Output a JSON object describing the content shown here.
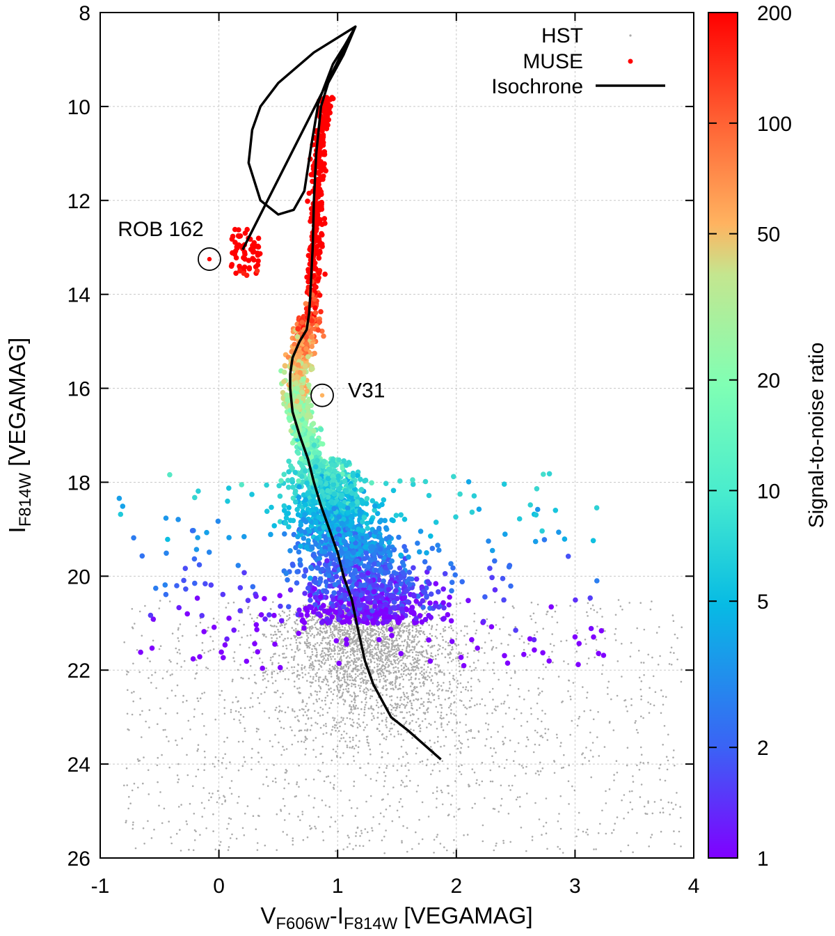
{
  "chart_data": {
    "type": "scatter",
    "title": "",
    "xlabel": {
      "main": "V",
      "sub1": "F606W",
      "mid": "-I",
      "sub2": "F814W",
      "tail": " [VEGAMAG]"
    },
    "ylabel": {
      "main": "I",
      "sub": "F814W",
      "tail": " [VEGAMAG]"
    },
    "xlim": [
      -1,
      4
    ],
    "ylim": [
      26,
      8
    ],
    "y_inverted": true,
    "grid": true,
    "x_ticks": [
      "-1",
      "0",
      "1",
      "2",
      "3",
      "4"
    ],
    "y_ticks": [
      "8",
      "10",
      "12",
      "14",
      "16",
      "18",
      "20",
      "22",
      "24",
      "26"
    ],
    "colorbar": {
      "label": "Signal-to-noise ratio",
      "scale": "log",
      "range": [
        1,
        200
      ],
      "ticks": [
        "1",
        "2",
        "5",
        "10",
        "20",
        "50",
        "100",
        "200"
      ],
      "palette": [
        "#8000ff",
        "#3b62f5",
        "#07bbe4",
        "#80ffb4",
        "#c4e68f",
        "#ffb360",
        "#ff6234",
        "#ff0000"
      ]
    },
    "legend": {
      "position": "top-right",
      "entries": [
        {
          "label": "HST",
          "symbol": "small-gray-dot",
          "color": "#aaaaaa"
        },
        {
          "label": "MUSE",
          "symbol": "red-dot",
          "color": "#ff0000"
        },
        {
          "label": "Isochrone",
          "symbol": "black-line",
          "color": "#000000"
        }
      ]
    },
    "annotations": [
      {
        "text": "ROB 162",
        "x": -0.08,
        "y": 13.25,
        "circled": true
      },
      {
        "text": "V31",
        "x": 0.87,
        "y": 16.15,
        "circled": true
      }
    ],
    "isochrone": {
      "name": "Isochrone",
      "points": [
        [
          1.87,
          23.9
        ],
        [
          1.6,
          23.3
        ],
        [
          1.45,
          23.0
        ],
        [
          1.3,
          22.3
        ],
        [
          1.23,
          21.8
        ],
        [
          1.16,
          21.0
        ],
        [
          1.12,
          20.5
        ],
        [
          1.05,
          20.0
        ],
        [
          1.0,
          19.5
        ],
        [
          0.93,
          19.0
        ],
        [
          0.86,
          18.5
        ],
        [
          0.8,
          18.0
        ],
        [
          0.75,
          17.5
        ],
        [
          0.68,
          17.0
        ],
        [
          0.62,
          16.5
        ],
        [
          0.6,
          16.0
        ],
        [
          0.6,
          15.7
        ],
        [
          0.62,
          15.35
        ],
        [
          0.68,
          15.0
        ],
        [
          0.74,
          14.75
        ],
        [
          0.76,
          14.4
        ],
        [
          0.77,
          14.0
        ],
        [
          0.79,
          13.0
        ],
        [
          0.8,
          12.0
        ],
        [
          0.82,
          11.0
        ],
        [
          0.86,
          10.0
        ],
        [
          0.92,
          9.5
        ],
        [
          1.05,
          8.9
        ],
        [
          1.15,
          8.3
        ],
        [
          0.8,
          8.85
        ],
        [
          0.5,
          9.5
        ],
        [
          0.35,
          10.0
        ],
        [
          0.28,
          10.5
        ],
        [
          0.25,
          11.2
        ],
        [
          0.35,
          12.0
        ],
        [
          0.5,
          12.3
        ],
        [
          0.63,
          12.2
        ],
        [
          0.72,
          11.8
        ],
        [
          0.78,
          10.8
        ],
        [
          0.84,
          9.9
        ],
        [
          0.96,
          9.1
        ],
        [
          1.06,
          8.7
        ],
        [
          1.15,
          8.3
        ],
        [
          0.2,
          13.05
        ]
      ]
    },
    "series": [
      {
        "name": "HST",
        "n_points": 4000,
        "distribution": "faint main-sequence stars, I ~ 20.5-26, colour -0.8 to 3.9"
      },
      {
        "name": "MUSE",
        "n_points": 3000,
        "distribution": "red giant branch, subgiant and main-sequence stars, I ~ 9-23, colour-coded by S/N"
      }
    ]
  }
}
